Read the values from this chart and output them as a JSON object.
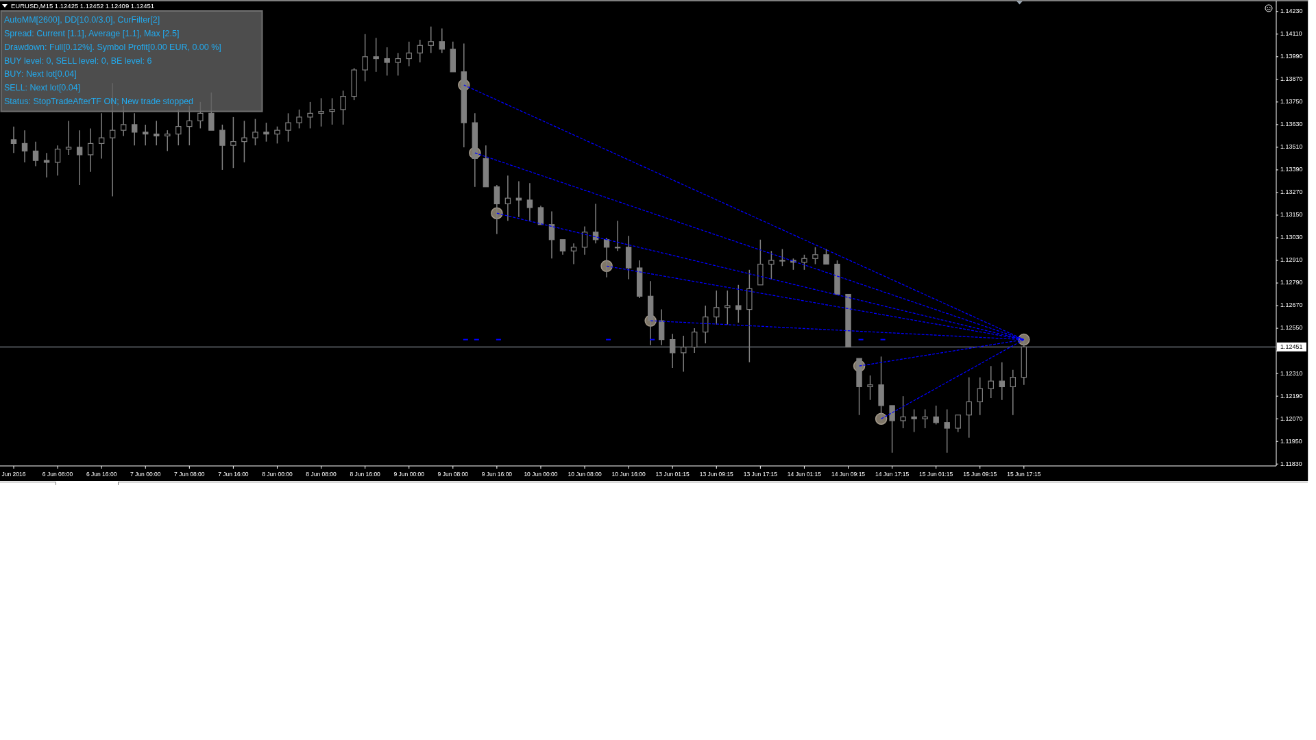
{
  "chart_data": {
    "type": "candlestick",
    "title": "EURUSD,M15 1.12425 1.12452 1.12409 1.12451",
    "annotations": [
      "AutoMM[2600], DD[10.0/3.0], CurFilter[2]",
      "Spread: Current [1.1], Average [1.1], Max [2.5]",
      "Drawdown: Full[0.12%]. Symbol Profit[0.00 EUR, 0.00 %]",
      "BUY level: 0, SELL level: 0, BE level: 6",
      "BUY: Next lot[0.04]",
      "SELL: Next lot[0.04]",
      "Status: StopTradeAfterTF ON; New trade stopped"
    ],
    "categories": [
      "Jun 2016",
      null,
      null,
      null,
      "6 Jun 08:00",
      null,
      null,
      null,
      "6 Jun 16:00",
      null,
      null,
      null,
      "7 Jun 00:00",
      null,
      null,
      null,
      "7 Jun 08:00",
      null,
      null,
      null,
      "7 Jun 16:00",
      null,
      null,
      null,
      "8 Jun 00:00",
      null,
      null,
      null,
      "8 Jun 08:00",
      null,
      null,
      null,
      "8 Jun 16:00",
      null,
      null,
      null,
      "9 Jun 00:00",
      null,
      null,
      null,
      "9 Jun 08:00",
      null,
      null,
      null,
      "9 Jun 16:00",
      null,
      null,
      null,
      "10 Jun 00:00",
      null,
      null,
      null,
      "10 Jun 08:00",
      null,
      null,
      null,
      "10 Jun 16:00",
      null,
      null,
      null,
      "13 Jun 01:15",
      null,
      null,
      null,
      "13 Jun 09:15",
      null,
      null,
      null,
      "13 Jun 17:15",
      null,
      null,
      null,
      "14 Jun 01:15",
      null,
      null,
      null,
      "14 Jun 09:15",
      null,
      null,
      null,
      "14 Jun 17:15",
      null,
      null,
      null,
      "15 Jun 01:15",
      null,
      null,
      null,
      "15 Jun 09:15",
      null,
      null,
      null,
      "15 Jun 17:15",
      null,
      null,
      null,
      null,
      null,
      null,
      null,
      null,
      null,
      null,
      null,
      null,
      null,
      null,
      null,
      null,
      null,
      null,
      null,
      null,
      null,
      null
    ],
    "ohlc": [
      [
        1.1355,
        1.1362,
        1.1348,
        1.1353
      ],
      [
        1.1353,
        1.136,
        1.1343,
        1.1349
      ],
      [
        1.1349,
        1.1354,
        1.1341,
        1.1344
      ],
      [
        1.1344,
        1.1348,
        1.1335,
        1.1343
      ],
      [
        1.1343,
        1.1352,
        1.1336,
        1.135
      ],
      [
        1.135,
        1.1365,
        1.1347,
        1.1351
      ],
      [
        1.1351,
        1.136,
        1.1331,
        1.1347
      ],
      [
        1.1347,
        1.1361,
        1.1338,
        1.1353
      ],
      [
        1.1353,
        1.1369,
        1.1345,
        1.1356
      ],
      [
        1.1356,
        1.1385,
        1.1325,
        1.136
      ],
      [
        1.136,
        1.1373,
        1.1357,
        1.1363
      ],
      [
        1.1363,
        1.1369,
        1.1352,
        1.1359
      ],
      [
        1.1359,
        1.1363,
        1.1352,
        1.1358
      ],
      [
        1.1358,
        1.1365,
        1.1352,
        1.1357
      ],
      [
        1.1357,
        1.136,
        1.1349,
        1.1358
      ],
      [
        1.1358,
        1.1371,
        1.1352,
        1.1362
      ],
      [
        1.1362,
        1.1373,
        1.1352,
        1.1365
      ],
      [
        1.1365,
        1.1375,
        1.1361,
        1.1369
      ],
      [
        1.1369,
        1.138,
        1.136,
        1.136
      ],
      [
        1.136,
        1.1363,
        1.1339,
        1.1352
      ],
      [
        1.1352,
        1.1367,
        1.134,
        1.1354
      ],
      [
        1.1354,
        1.1365,
        1.1343,
        1.1356
      ],
      [
        1.1356,
        1.1366,
        1.1352,
        1.1359
      ],
      [
        1.1359,
        1.1364,
        1.1354,
        1.1358
      ],
      [
        1.1358,
        1.1362,
        1.1353,
        1.136
      ],
      [
        1.136,
        1.1369,
        1.1354,
        1.1364
      ],
      [
        1.1364,
        1.1371,
        1.1361,
        1.1367
      ],
      [
        1.1367,
        1.1375,
        1.1361,
        1.1369
      ],
      [
        1.1369,
        1.1377,
        1.1362,
        1.137
      ],
      [
        1.137,
        1.1377,
        1.1363,
        1.1371
      ],
      [
        1.1371,
        1.1381,
        1.1363,
        1.1378
      ],
      [
        1.1378,
        1.1393,
        1.1376,
        1.1392
      ],
      [
        1.1392,
        1.1411,
        1.1386,
        1.1399
      ],
      [
        1.1399,
        1.1409,
        1.1391,
        1.1398
      ],
      [
        1.1398,
        1.1404,
        1.1389,
        1.1396
      ],
      [
        1.1396,
        1.1401,
        1.1389,
        1.1398
      ],
      [
        1.1398,
        1.1407,
        1.1394,
        1.1401
      ],
      [
        1.1401,
        1.1408,
        1.1396,
        1.1405
      ],
      [
        1.1405,
        1.1415,
        1.1401,
        1.1407
      ],
      [
        1.1407,
        1.1414,
        1.1401,
        1.1403
      ],
      [
        1.1403,
        1.1407,
        1.1391,
        1.1391
      ],
      [
        1.1391,
        1.1406,
        1.1351,
        1.1364
      ],
      [
        1.1364,
        1.1369,
        1.133,
        1.1345
      ],
      [
        1.1345,
        1.1352,
        1.133,
        1.133
      ],
      [
        1.133,
        1.1331,
        1.1305,
        1.1321
      ],
      [
        1.1321,
        1.1336,
        1.1312,
        1.1324
      ],
      [
        1.1324,
        1.1333,
        1.1314,
        1.1323
      ],
      [
        1.1323,
        1.1332,
        1.1312,
        1.1319
      ],
      [
        1.1319,
        1.132,
        1.131,
        1.131
      ],
      [
        1.131,
        1.1317,
        1.1292,
        1.1302
      ],
      [
        1.1302,
        1.1302,
        1.1294,
        1.1296
      ],
      [
        1.1296,
        1.13,
        1.1289,
        1.1298
      ],
      [
        1.1298,
        1.1309,
        1.1294,
        1.1306
      ],
      [
        1.1306,
        1.1321,
        1.13,
        1.1302
      ],
      [
        1.1302,
        1.1303,
        1.1282,
        1.1298
      ],
      [
        1.1298,
        1.1312,
        1.1296,
        1.1298
      ],
      [
        1.1298,
        1.1304,
        1.1281,
        1.1287
      ],
      [
        1.1287,
        1.1291,
        1.1271,
        1.1272
      ],
      [
        1.1272,
        1.128,
        1.1246,
        1.1259
      ],
      [
        1.1259,
        1.1265,
        1.1246,
        1.1249
      ],
      [
        1.1249,
        1.1252,
        1.1234,
        1.1242
      ],
      [
        1.1242,
        1.1251,
        1.1232,
        1.1245
      ],
      [
        1.1245,
        1.1255,
        1.1242,
        1.1253
      ],
      [
        1.1253,
        1.1267,
        1.1247,
        1.1261
      ],
      [
        1.1261,
        1.1275,
        1.1257,
        1.1266
      ],
      [
        1.1266,
        1.1275,
        1.1257,
        1.1267
      ],
      [
        1.1267,
        1.1278,
        1.1258,
        1.1265
      ],
      [
        1.1265,
        1.1286,
        1.1237,
        1.1276
      ],
      [
        1.1278,
        1.1302,
        1.1278,
        1.1289
      ],
      [
        1.1289,
        1.1296,
        1.1281,
        1.1291
      ],
      [
        1.1291,
        1.1297,
        1.1288,
        1.1291
      ],
      [
        1.1291,
        1.1292,
        1.1286,
        1.129
      ],
      [
        1.129,
        1.1294,
        1.1286,
        1.1292
      ],
      [
        1.1292,
        1.1298,
        1.1289,
        1.1294
      ],
      [
        1.1294,
        1.1297,
        1.1289,
        1.1289
      ],
      [
        1.1289,
        1.1291,
        1.1273,
        1.1273
      ],
      [
        1.1273,
        1.1273,
        1.1245,
        1.1245
      ],
      [
        1.1239,
        1.1239,
        1.1209,
        1.1224
      ],
      [
        1.1224,
        1.123,
        1.1217,
        1.1225
      ],
      [
        1.1225,
        1.124,
        1.1206,
        1.1214
      ],
      [
        1.1214,
        1.1214,
        1.1189,
        1.1206
      ],
      [
        1.1206,
        1.1219,
        1.1202,
        1.1208
      ],
      [
        1.1208,
        1.1212,
        1.12,
        1.1207
      ],
      [
        1.1207,
        1.1212,
        1.1202,
        1.1208
      ],
      [
        1.1208,
        1.1214,
        1.1204,
        1.1205
      ],
      [
        1.1205,
        1.1212,
        1.1189,
        1.1202
      ],
      [
        1.1202,
        1.1209,
        1.12,
        1.1209
      ],
      [
        1.1209,
        1.1229,
        1.1197,
        1.1216
      ],
      [
        1.1216,
        1.1229,
        1.1209,
        1.1223
      ],
      [
        1.1223,
        1.1235,
        1.1218,
        1.1227
      ],
      [
        1.1227,
        1.1237,
        1.1217,
        1.1224
      ],
      [
        1.1224,
        1.1233,
        1.1209,
        1.1229
      ],
      [
        1.1229,
        1.1249,
        1.1225,
        1.12451
      ],
      null,
      null,
      null,
      null,
      null,
      null,
      null,
      null,
      null,
      null,
      null,
      null,
      null,
      null,
      null,
      null,
      null,
      null,
      null,
      null,
      null,
      null
    ],
    "color": "#808080",
    "series": [
      {
        "type": "line",
        "values": [
          null,
          null,
          null,
          null,
          null,
          null,
          null,
          null,
          null,
          null,
          null,
          null,
          null,
          null,
          null,
          null,
          null,
          null,
          null,
          null,
          null,
          null,
          null,
          null,
          null,
          null,
          null,
          null,
          null,
          null,
          null,
          null,
          null,
          null,
          null,
          null,
          null,
          null,
          null,
          null,
          null,
          1.1384,
          null,
          null,
          null,
          null,
          null,
          null,
          null,
          null,
          null,
          null,
          null,
          null,
          null,
          null,
          null,
          null,
          null,
          null,
          null,
          null,
          null,
          null,
          null,
          null,
          null,
          null,
          null,
          null,
          null,
          null,
          null,
          null,
          null,
          null,
          null,
          null,
          null,
          null,
          null,
          null,
          null,
          null,
          null,
          null,
          null,
          null,
          null,
          null,
          null,
          null,
          1.1249,
          null,
          null,
          null,
          null,
          null,
          null,
          null,
          null,
          null,
          null,
          null,
          null,
          null,
          null,
          null,
          null,
          null,
          null,
          null,
          null,
          null,
          null
        ],
        "color": "#0000ff",
        "line_style": "dashed"
      },
      {
        "type": "line",
        "values": [
          null,
          null,
          null,
          null,
          null,
          null,
          null,
          null,
          null,
          null,
          null,
          null,
          null,
          null,
          null,
          null,
          null,
          null,
          null,
          null,
          null,
          null,
          null,
          null,
          null,
          null,
          null,
          null,
          null,
          null,
          null,
          null,
          null,
          null,
          null,
          null,
          null,
          null,
          null,
          null,
          null,
          null,
          1.1348,
          null,
          null,
          null,
          null,
          null,
          null,
          null,
          null,
          null,
          null,
          null,
          null,
          null,
          null,
          null,
          null,
          null,
          null,
          null,
          null,
          null,
          null,
          null,
          null,
          null,
          null,
          null,
          null,
          null,
          null,
          null,
          null,
          null,
          null,
          null,
          null,
          null,
          null,
          null,
          null,
          null,
          null,
          null,
          null,
          null,
          null,
          null,
          null,
          null,
          1.1249,
          null,
          null,
          null,
          null,
          null,
          null,
          null,
          null,
          null,
          null,
          null,
          null,
          null,
          null,
          null,
          null,
          null,
          null,
          null,
          null,
          null,
          null
        ],
        "color": "#0000ff",
        "line_style": "dashed"
      },
      {
        "type": "line",
        "values": [
          null,
          null,
          null,
          null,
          null,
          null,
          null,
          null,
          null,
          null,
          null,
          null,
          null,
          null,
          null,
          null,
          null,
          null,
          null,
          null,
          null,
          null,
          null,
          null,
          null,
          null,
          null,
          null,
          null,
          null,
          null,
          null,
          null,
          null,
          null,
          null,
          null,
          null,
          null,
          null,
          null,
          null,
          null,
          null,
          1.1316,
          null,
          null,
          null,
          null,
          null,
          null,
          null,
          null,
          null,
          null,
          null,
          null,
          null,
          null,
          null,
          null,
          null,
          null,
          null,
          null,
          null,
          null,
          null,
          null,
          null,
          null,
          null,
          null,
          null,
          null,
          null,
          null,
          null,
          null,
          null,
          null,
          null,
          null,
          null,
          null,
          null,
          null,
          null,
          null,
          null,
          null,
          null,
          1.1249,
          null,
          null,
          null,
          null,
          null,
          null,
          null,
          null,
          null,
          null,
          null,
          null,
          null,
          null,
          null,
          null,
          null,
          null,
          null,
          null,
          null,
          null
        ],
        "color": "#0000ff",
        "line_style": "dashed"
      },
      {
        "type": "line",
        "values": [
          null,
          null,
          null,
          null,
          null,
          null,
          null,
          null,
          null,
          null,
          null,
          null,
          null,
          null,
          null,
          null,
          null,
          null,
          null,
          null,
          null,
          null,
          null,
          null,
          null,
          null,
          null,
          null,
          null,
          null,
          null,
          null,
          null,
          null,
          null,
          null,
          null,
          null,
          null,
          null,
          null,
          null,
          null,
          null,
          null,
          null,
          null,
          null,
          null,
          null,
          null,
          null,
          null,
          null,
          1.1288,
          null,
          null,
          null,
          null,
          null,
          null,
          null,
          null,
          null,
          null,
          null,
          null,
          null,
          null,
          null,
          null,
          null,
          null,
          null,
          null,
          null,
          null,
          null,
          null,
          null,
          null,
          null,
          null,
          null,
          null,
          null,
          null,
          null,
          null,
          null,
          null,
          null,
          1.1249,
          null,
          null,
          null,
          null,
          null,
          null,
          null,
          null,
          null,
          null,
          null,
          null,
          null,
          null,
          null,
          null,
          null,
          null,
          null,
          null,
          null,
          null
        ],
        "color": "#0000ff",
        "line_style": "dashed"
      },
      {
        "type": "line",
        "values": [
          null,
          null,
          null,
          null,
          null,
          null,
          null,
          null,
          null,
          null,
          null,
          null,
          null,
          null,
          null,
          null,
          null,
          null,
          null,
          null,
          null,
          null,
          null,
          null,
          null,
          null,
          null,
          null,
          null,
          null,
          null,
          null,
          null,
          null,
          null,
          null,
          null,
          null,
          null,
          null,
          null,
          null,
          null,
          null,
          null,
          null,
          null,
          null,
          null,
          null,
          null,
          null,
          null,
          null,
          null,
          null,
          null,
          null,
          1.1259,
          null,
          null,
          null,
          null,
          null,
          null,
          null,
          null,
          null,
          null,
          null,
          null,
          null,
          null,
          null,
          null,
          null,
          null,
          null,
          null,
          null,
          null,
          null,
          null,
          null,
          null,
          null,
          null,
          null,
          null,
          null,
          null,
          null,
          1.1249,
          null,
          null,
          null,
          null,
          null,
          null,
          null,
          null,
          null,
          null,
          null,
          null,
          null,
          null,
          null,
          null,
          null,
          null,
          null,
          null,
          null,
          null
        ],
        "color": "#0000ff",
        "line_style": "dashed"
      },
      {
        "type": "line",
        "values": [
          null,
          null,
          null,
          null,
          null,
          null,
          null,
          null,
          null,
          null,
          null,
          null,
          null,
          null,
          null,
          null,
          null,
          null,
          null,
          null,
          null,
          null,
          null,
          null,
          null,
          null,
          null,
          null,
          null,
          null,
          null,
          null,
          null,
          null,
          null,
          null,
          null,
          null,
          null,
          null,
          null,
          null,
          null,
          null,
          null,
          null,
          null,
          null,
          null,
          null,
          null,
          null,
          null,
          null,
          null,
          null,
          null,
          null,
          null,
          null,
          null,
          null,
          null,
          null,
          null,
          null,
          null,
          null,
          null,
          null,
          null,
          null,
          null,
          null,
          null,
          null,
          null,
          1.1235,
          null,
          null,
          null,
          null,
          null,
          null,
          null,
          null,
          null,
          null,
          null,
          null,
          null,
          null,
          1.1249,
          null,
          null,
          null,
          null,
          null,
          null,
          null,
          null,
          null,
          null,
          null,
          null,
          null,
          null,
          null,
          null,
          null,
          null,
          null,
          null,
          null,
          null
        ],
        "color": "#0000ff",
        "line_style": "dashed"
      },
      {
        "type": "line",
        "values": [
          null,
          null,
          null,
          null,
          null,
          null,
          null,
          null,
          null,
          null,
          null,
          null,
          null,
          null,
          null,
          null,
          null,
          null,
          null,
          null,
          null,
          null,
          null,
          null,
          null,
          null,
          null,
          null,
          null,
          null,
          null,
          null,
          null,
          null,
          null,
          null,
          null,
          null,
          null,
          null,
          null,
          null,
          null,
          null,
          null,
          null,
          null,
          null,
          null,
          null,
          null,
          null,
          null,
          null,
          null,
          null,
          null,
          null,
          null,
          null,
          null,
          null,
          null,
          null,
          null,
          null,
          null,
          null,
          null,
          null,
          null,
          null,
          null,
          null,
          null,
          null,
          null,
          null,
          null,
          1.1207,
          null,
          null,
          null,
          null,
          null,
          null,
          null,
          null,
          null,
          null,
          null,
          null,
          1.1249,
          null,
          null,
          null,
          null,
          null,
          null,
          null,
          null,
          null,
          null,
          null,
          null,
          null,
          null,
          null,
          null,
          null,
          null,
          null,
          null,
          null,
          null
        ],
        "color": "#0000ff",
        "line_style": "dashed"
      },
      {
        "type": "scatter",
        "values": [
          null,
          null,
          null,
          null,
          null,
          null,
          null,
          null,
          null,
          null,
          null,
          null,
          null,
          null,
          null,
          null,
          null,
          null,
          null,
          null,
          null,
          null,
          null,
          null,
          null,
          null,
          null,
          null,
          null,
          null,
          null,
          null,
          null,
          null,
          null,
          null,
          null,
          null,
          null,
          null,
          null,
          1.1384,
          1.1348,
          null,
          1.1316,
          null,
          null,
          null,
          null,
          null,
          null,
          null,
          null,
          null,
          1.1288,
          null,
          null,
          null,
          1.1259,
          null,
          null,
          null,
          null,
          null,
          null,
          null,
          null,
          null,
          null,
          null,
          null,
          null,
          null,
          null,
          null,
          null,
          null,
          1.1235,
          null,
          1.1207,
          null,
          null,
          null,
          null,
          null,
          null,
          null,
          null,
          null,
          null,
          null,
          null,
          1.1249,
          null,
          null,
          null,
          null,
          null,
          null,
          null,
          null,
          null,
          null,
          null,
          null,
          null,
          null,
          null,
          null,
          null,
          null,
          null,
          null,
          null,
          null
        ],
        "color": "#7f7668",
        "marker": "circle"
      }
    ],
    "ylim": [
      1.1182,
      1.1428
    ],
    "yticks": [
      {
        "value": 1.1183,
        "label": "1.11830"
      },
      {
        "value": 1.1195,
        "label": "1.11950"
      },
      {
        "value": 1.1207,
        "label": "1.12070"
      },
      {
        "value": 1.1219,
        "label": "1.12190"
      },
      {
        "value": 1.1231,
        "label": "1.12310"
      },
      {
        "value": 1.1243,
        "label": null
      },
      {
        "value": 1.1255,
        "label": "1.12550"
      },
      {
        "value": 1.1267,
        "label": "1.12670"
      },
      {
        "value": 1.1279,
        "label": "1.12790"
      },
      {
        "value": 1.1291,
        "label": "1.12910"
      },
      {
        "value": 1.1303,
        "label": "1.13030"
      },
      {
        "value": 1.1315,
        "label": "1.13150"
      },
      {
        "value": 1.1327,
        "label": "1.13270"
      },
      {
        "value": 1.1339,
        "label": "1.13390"
      },
      {
        "value": 1.1351,
        "label": "1.13510"
      },
      {
        "value": 1.1363,
        "label": "1.13630"
      },
      {
        "value": 1.1375,
        "label": "1.13750"
      },
      {
        "value": 1.1387,
        "label": "1.13870"
      },
      {
        "value": 1.1399,
        "label": "1.13990"
      },
      {
        "value": 1.1411,
        "label": "1.14110"
      },
      {
        "value": 1.1423,
        "label": "1.14230"
      }
    ],
    "ref_lines": [
      {
        "axis": "y",
        "value": 1.12451,
        "label": "1.12451",
        "color": "#a4adb8"
      }
    ]
  }
}
